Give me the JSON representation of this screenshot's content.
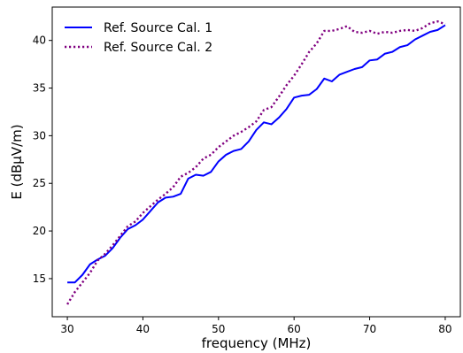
{
  "chart_data": {
    "type": "line",
    "xlabel": "frequency (MHz)",
    "ylabel": "E (dBμV/m)",
    "xlim": [
      28,
      82
    ],
    "ylim": [
      11,
      43.5
    ],
    "xticks": [
      30,
      40,
      50,
      60,
      70,
      80
    ],
    "yticks": [
      15,
      20,
      25,
      30,
      35,
      40
    ],
    "grid": false,
    "legend_position": "top-left",
    "series": [
      {
        "name": "Ref. Source Cal. 1",
        "color": "#0000ff",
        "style": "solid",
        "x": [
          30,
          31,
          32,
          33,
          34,
          35,
          36,
          37,
          38,
          39,
          40,
          41,
          42,
          43,
          44,
          45,
          46,
          47,
          48,
          49,
          50,
          51,
          52,
          53,
          54,
          55,
          56,
          57,
          58,
          59,
          60,
          61,
          62,
          63,
          64,
          65,
          66,
          67,
          68,
          69,
          70,
          71,
          72,
          73,
          74,
          75,
          76,
          77,
          78,
          79,
          80
        ],
        "y": [
          14.6,
          14.6,
          15.4,
          16.5,
          17.0,
          17.4,
          18.2,
          19.3,
          20.2,
          20.6,
          21.2,
          22.1,
          23.0,
          23.5,
          23.6,
          23.9,
          25.5,
          25.9,
          25.8,
          26.2,
          27.3,
          28.0,
          28.4,
          28.6,
          29.4,
          30.6,
          31.4,
          31.2,
          31.9,
          32.8,
          34.0,
          34.2,
          34.3,
          34.9,
          36.0,
          35.7,
          36.4,
          36.7,
          37.0,
          37.2,
          37.9,
          38.0,
          38.6,
          38.8,
          39.3,
          39.5,
          40.1,
          40.5,
          40.9,
          41.1,
          41.6
        ]
      },
      {
        "name": "Ref. Source Cal. 2",
        "color": "#800080",
        "style": "dotted",
        "x": [
          30,
          31,
          32,
          33,
          34,
          35,
          36,
          37,
          38,
          39,
          40,
          41,
          42,
          43,
          44,
          45,
          46,
          47,
          48,
          49,
          50,
          51,
          52,
          53,
          54,
          55,
          56,
          57,
          58,
          59,
          60,
          61,
          62,
          63,
          64,
          65,
          66,
          67,
          68,
          69,
          70,
          71,
          72,
          73,
          74,
          75,
          76,
          77,
          78,
          79,
          80
        ],
        "y": [
          12.3,
          13.6,
          14.6,
          15.6,
          16.9,
          17.6,
          18.5,
          19.5,
          20.5,
          21.0,
          21.9,
          22.6,
          23.3,
          23.9,
          24.6,
          25.7,
          26.1,
          26.7,
          27.6,
          28.0,
          28.8,
          29.4,
          30.0,
          30.4,
          30.9,
          31.5,
          32.7,
          33.0,
          34.1,
          35.3,
          36.3,
          37.5,
          38.8,
          39.7,
          41.0,
          41.0,
          41.2,
          41.5,
          40.9,
          40.8,
          41.0,
          40.7,
          40.9,
          40.8,
          41.0,
          41.1,
          41.0,
          41.3,
          41.8,
          42.0,
          41.7
        ]
      }
    ]
  }
}
